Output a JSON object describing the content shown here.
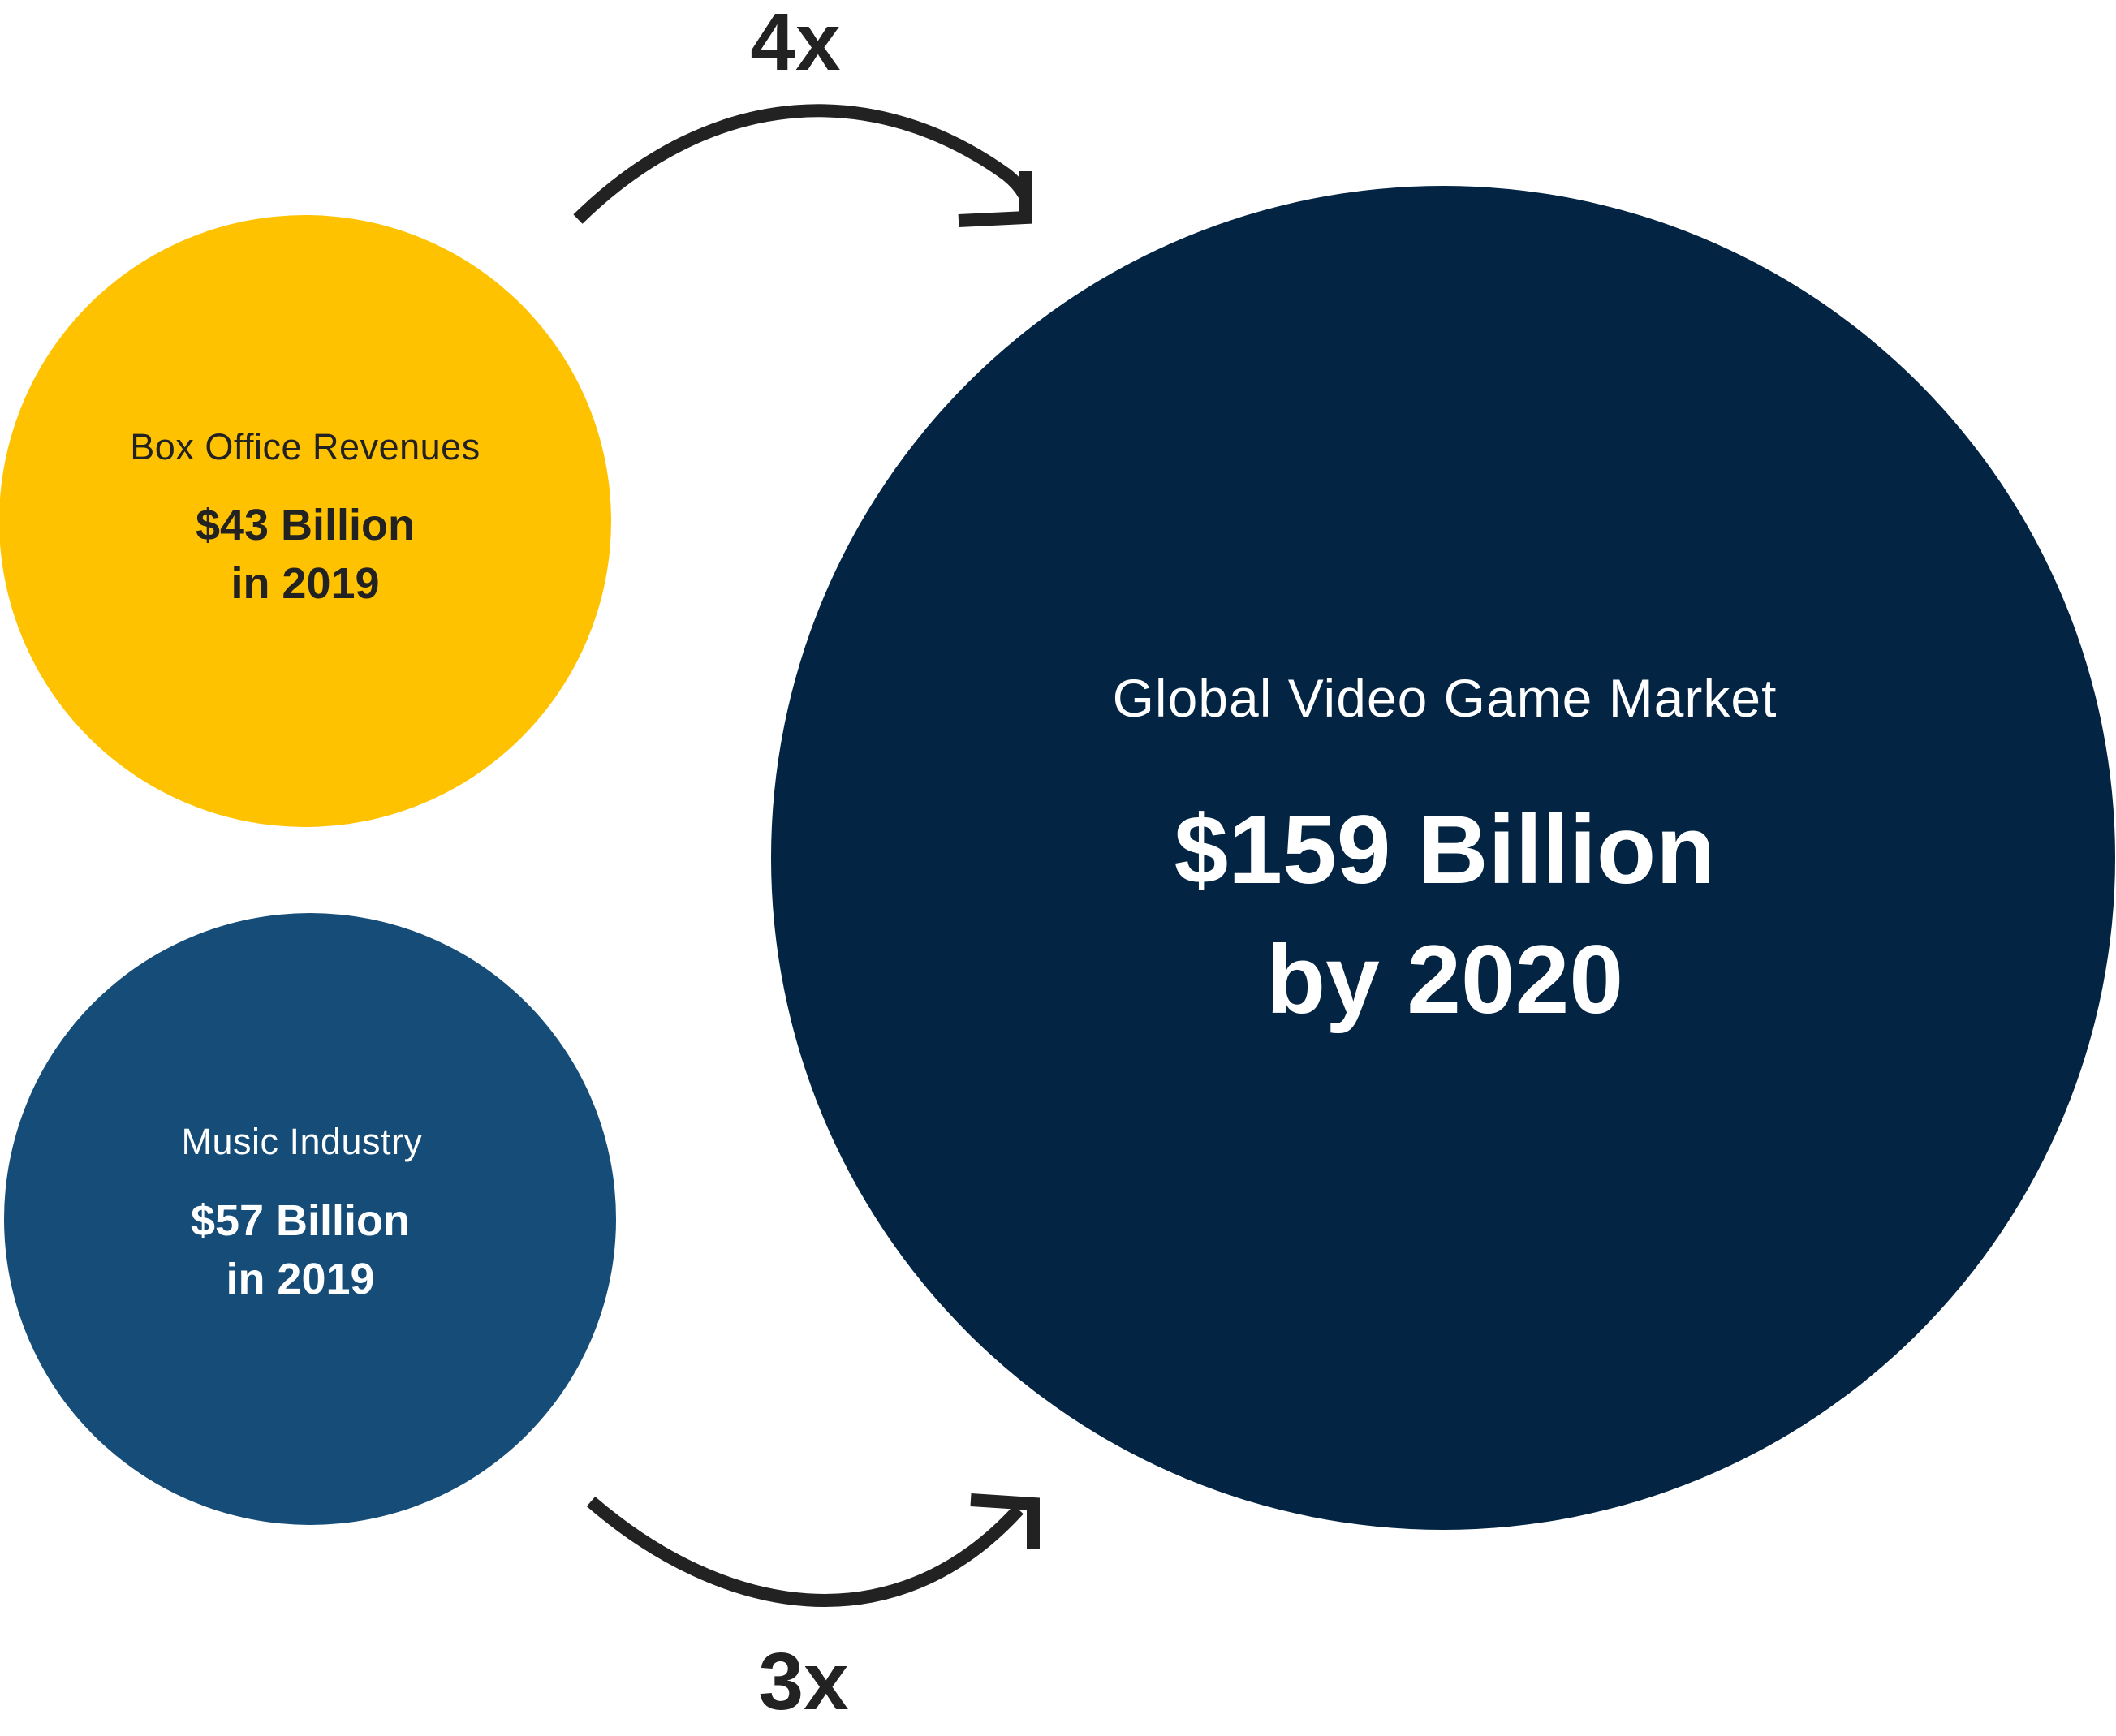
{
  "colors": {
    "box_office": "#FFC200",
    "music": "#154D78",
    "video_games": "#032442",
    "arrow": "#222222",
    "dark_text": "#222222",
    "light_text": "#ffffff"
  },
  "box_office": {
    "title": "Box Office Revenues",
    "value_line1": "$43 Billion",
    "value_line2": "in 2019"
  },
  "music": {
    "title": "Music Industry",
    "value_line1": "$57 Billion",
    "value_line2": "in 2019"
  },
  "video_games": {
    "title": "Global Video Game Market",
    "value_line1": "$159 Billion",
    "value_line2": "by 2020"
  },
  "multipliers": {
    "top": "4x",
    "bottom": "3x"
  }
}
